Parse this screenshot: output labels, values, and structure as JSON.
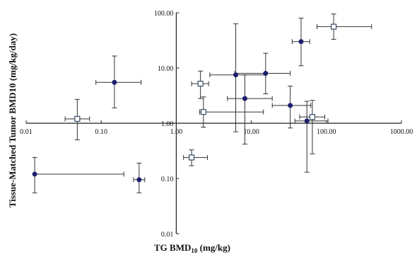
{
  "chart_data": {
    "type": "scatter",
    "title": "",
    "xlabel": "TG BMD10 (mg/kg)",
    "xlabel_parts": {
      "main": "TG BMD",
      "sub": "10",
      "unit": " (mg/kg)"
    },
    "ylabel": "Tissue-Matched Tumor BMD10 (mg/kg/day)",
    "x_scale": "log",
    "y_scale": "log",
    "xlim": [
      0.01,
      1000
    ],
    "ylim": [
      0.01,
      100
    ],
    "x_ticks": [
      "0.01",
      "0.10",
      "1.00",
      "10.00",
      "100.00",
      "1000.00"
    ],
    "y_ticks": [
      "100.00",
      "10.00",
      "1.00",
      "0.10",
      "0.01"
    ],
    "axes_cross_at": {
      "x": 1,
      "y": 1
    },
    "grid": false,
    "legend": "none",
    "colors": {
      "filled_marker": "#1f1f6e",
      "open_marker_edge": "#3a4a6a",
      "open_marker_fill": "#ffffff",
      "error_bar": "#333333",
      "axis": "#222222"
    },
    "series": [
      {
        "marker": "filled-circle",
        "points": [
          {
            "x": 0.013,
            "y": 0.12,
            "xlow": 0.013,
            "xhigh": 0.2,
            "ylow": 0.055,
            "yhigh": 0.24
          },
          {
            "x": 0.32,
            "y": 0.095,
            "xlow": 0.27,
            "xhigh": 0.38,
            "ylow": 0.055,
            "yhigh": 0.19
          },
          {
            "x": 0.15,
            "y": 5.5,
            "xlow": 0.085,
            "xhigh": 0.34,
            "ylow": 1.9,
            "yhigh": 16.5
          },
          {
            "x": 6.2,
            "y": 7.5,
            "xlow": 2.8,
            "xhigh": 15.5,
            "ylow": 0.7,
            "yhigh": 63
          },
          {
            "x": 8.2,
            "y": 2.8,
            "xlow": 4.8,
            "xhigh": 19,
            "ylow": 0.42,
            "yhigh": 7.5
          },
          {
            "x": 15.5,
            "y": 8.0,
            "xlow": 6.0,
            "xhigh": 33,
            "ylow": 3.4,
            "yhigh": 18.5
          },
          {
            "x": 33,
            "y": 2.1,
            "xlow": 19,
            "xhigh": 62,
            "ylow": 0.82,
            "yhigh": 4.7
          },
          {
            "x": 46,
            "y": 30,
            "xlow": 35,
            "xhigh": 60,
            "ylow": 11,
            "yhigh": 80
          },
          {
            "x": 55,
            "y": 1.1,
            "xlow": 38,
            "xhigh": 105,
            "ylow": 0.13,
            "yhigh": 2.5
          }
        ]
      },
      {
        "marker": "open-square",
        "points": [
          {
            "x": 0.048,
            "y": 1.2,
            "xlow": 0.033,
            "xhigh": 0.07,
            "ylow": 0.5,
            "yhigh": 2.7
          },
          {
            "x": 1.6,
            "y": 0.24,
            "xlow": 1.25,
            "xhigh": 2.6,
            "ylow": 0.17,
            "yhigh": 0.33
          },
          {
            "x": 2.1,
            "y": 5.2,
            "xlow": 1.6,
            "xhigh": 2.7,
            "ylow": 2.8,
            "yhigh": 8.8
          },
          {
            "x": 2.3,
            "y": 1.6,
            "xlow": 2.05,
            "xhigh": 14.5,
            "ylow": 0.85,
            "yhigh": 3.0
          },
          {
            "x": 65,
            "y": 1.3,
            "xlow": 44,
            "xhigh": 95,
            "ylow": 0.28,
            "yhigh": 2.6
          },
          {
            "x": 125,
            "y": 56,
            "xlow": 75,
            "xhigh": 400,
            "ylow": 33,
            "yhigh": 95
          }
        ]
      }
    ]
  }
}
